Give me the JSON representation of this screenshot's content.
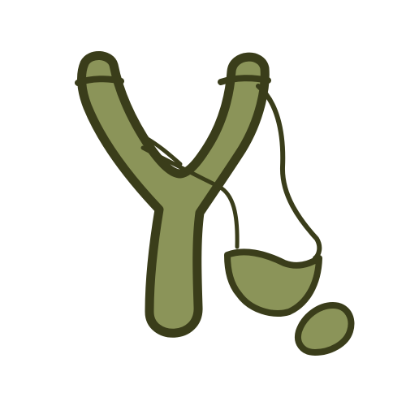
{
  "illustration": {
    "subject": "slingshot-icon",
    "colors": {
      "outline": "#3a3d1a",
      "fill": "#8b9459",
      "background": "#ffffff"
    }
  }
}
